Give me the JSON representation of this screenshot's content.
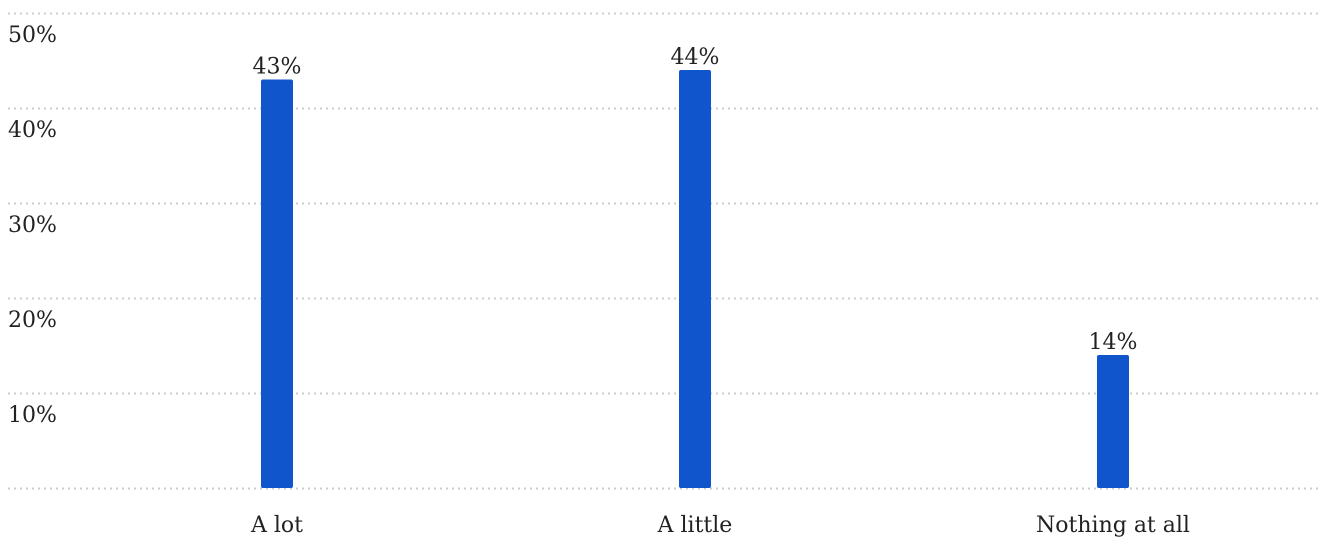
{
  "colors": {
    "bar": "#1155cc",
    "grid": "#cccccc",
    "text": "#222222",
    "background": "#ffffff"
  },
  "chart_data": {
    "type": "bar",
    "categories": [
      "A lot",
      "A little",
      "Nothing at all"
    ],
    "values": [
      43,
      44,
      14
    ],
    "data_labels": [
      "43%",
      "44%",
      "14%"
    ],
    "title": "",
    "xlabel": "",
    "ylabel": "",
    "ylim": [
      0,
      50
    ],
    "yticks": [
      10,
      20,
      30,
      40,
      50
    ],
    "ytick_labels": [
      "10%",
      "20%",
      "30%",
      "40%",
      "50%"
    ],
    "grid": true,
    "legend": "none"
  }
}
